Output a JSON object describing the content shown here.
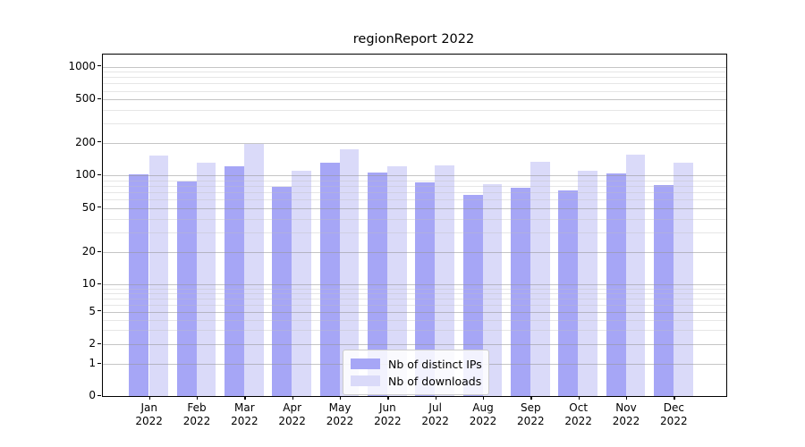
{
  "chart_data": {
    "type": "bar",
    "title": "regionReport 2022",
    "categories": [
      "Jan 2022",
      "Feb 2022",
      "Mar 2022",
      "Apr 2022",
      "May 2022",
      "Jun 2022",
      "Jul 2022",
      "Aug 2022",
      "Sep 2022",
      "Oct 2022",
      "Nov 2022",
      "Dec 2022"
    ],
    "series": [
      {
        "name": "Nb of distinct IPs",
        "color": "#a6a6f6",
        "values": [
          103,
          89,
          122,
          79,
          132,
          107,
          87,
          66,
          77,
          73,
          104,
          82
        ]
      },
      {
        "name": "Nb of downloads",
        "color": "#dadaf9",
        "values": [
          152,
          132,
          196,
          110,
          173,
          122,
          124,
          83,
          135,
          110,
          157,
          132
        ]
      }
    ],
    "xlabel": "",
    "ylabel": "",
    "yscale": "symlog",
    "ylim": [
      0,
      1290
    ],
    "yticks": [
      0,
      1,
      2,
      5,
      10,
      20,
      50,
      100,
      200,
      500,
      1000
    ],
    "y_minor_ticks": [
      3,
      4,
      6,
      7,
      8,
      9,
      30,
      40,
      60,
      70,
      80,
      90,
      300,
      400,
      600,
      700,
      800,
      900
    ],
    "grid": "on",
    "legend_position": "bottom-center"
  }
}
